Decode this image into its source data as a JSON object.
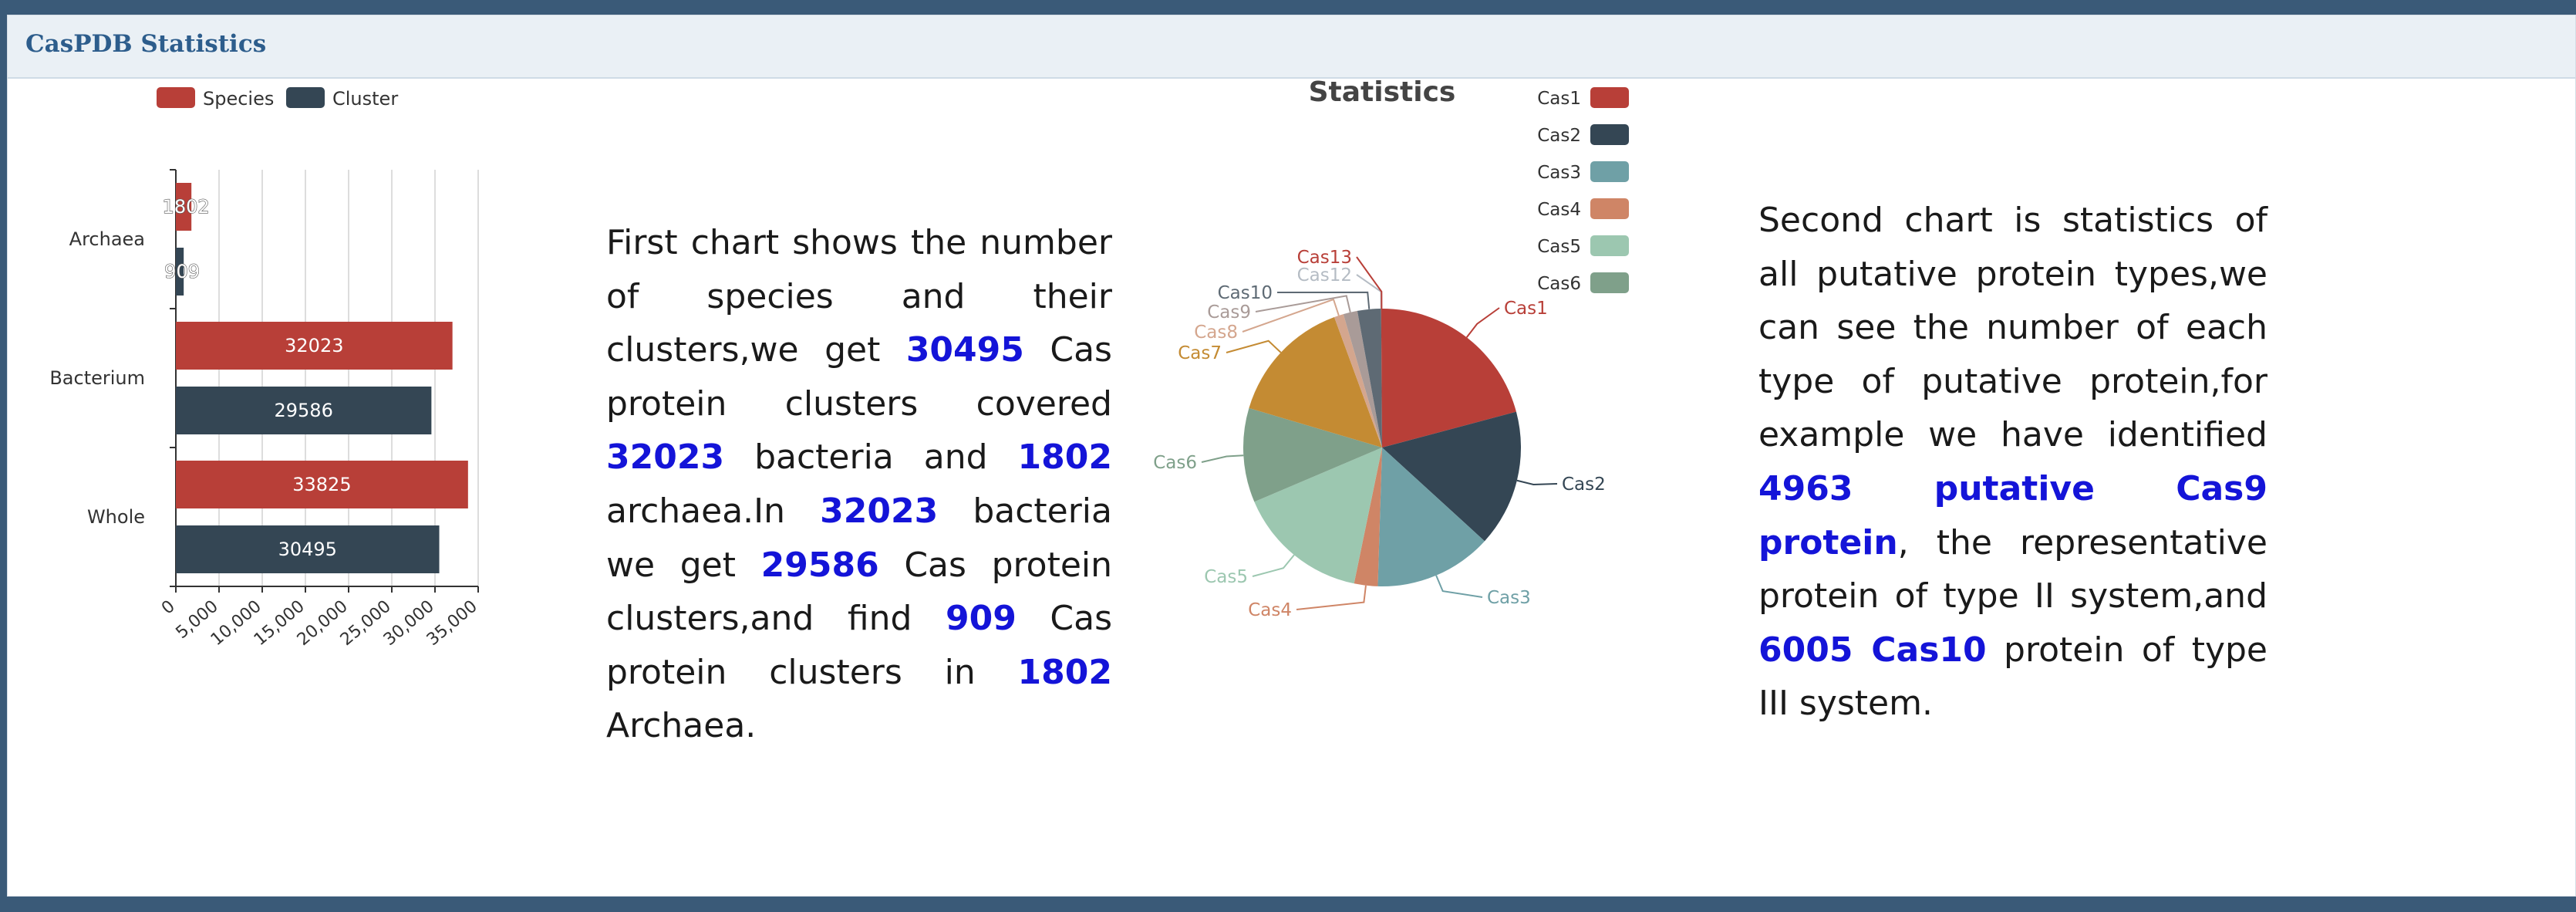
{
  "panel": {
    "title": "CasPDB Statistics"
  },
  "colors": {
    "Species": "#b83f38",
    "Cluster": "#344654",
    "Cas1": "#b83f38",
    "Cas2": "#344654",
    "Cas3": "#6fa0a6",
    "Cas4": "#cf8566",
    "Cas5": "#9cc7b0",
    "Cas6": "#7fa08a",
    "Cas7": "#c48b33",
    "Cas8": "#d4a68e",
    "Cas9": "#a99b98",
    "Cas10": "#5e6a74",
    "Cas12": "#c8cdd3",
    "Cas13": "#b83f38",
    "highlight": "#1414d8"
  },
  "chart_data": [
    {
      "type": "bar",
      "orientation": "horizontal",
      "categories": [
        "Archaea",
        "Bacterium",
        "Whole"
      ],
      "series": [
        {
          "name": "Species",
          "values": [
            1802,
            32023,
            33825
          ]
        },
        {
          "name": "Cluster",
          "values": [
            909,
            29586,
            30495
          ]
        }
      ],
      "xlim": [
        0,
        35000
      ],
      "xticks": [
        "0",
        "5,000",
        "10,000",
        "15,000",
        "20,000",
        "25,000",
        "30,000",
        "35,000"
      ],
      "grid": true,
      "legend": "top"
    },
    {
      "type": "pie",
      "title": "Statistics",
      "labels": [
        "Cas1",
        "Cas2",
        "Cas3",
        "Cas4",
        "Cas5",
        "Cas6",
        "Cas7",
        "Cas8",
        "Cas9",
        "Cas10",
        "Cas12",
        "Cas13"
      ],
      "values": [
        19,
        14.5,
        12.5,
        2.5,
        14,
        10,
        13.5,
        1,
        1.5,
        2.5,
        0,
        0.1
      ],
      "legend_labels": [
        "Cas1",
        "Cas2",
        "Cas3",
        "Cas4",
        "Cas5",
        "Cas6"
      ],
      "legend": "top-right"
    }
  ],
  "text1": {
    "segments": [
      {
        "t": "First chart shows the number of species and their clusters,we get "
      },
      {
        "t": "30495",
        "h": true
      },
      {
        "t": " Cas protein clusters covered "
      },
      {
        "t": "32023",
        "h": true
      },
      {
        "t": " bacteria and "
      },
      {
        "t": "1802",
        "h": true
      },
      {
        "t": " archaea.In "
      },
      {
        "t": "32023",
        "h": true
      },
      {
        "t": " bacteria we get "
      },
      {
        "t": "29586",
        "h": true
      },
      {
        "t": " Cas protein clusters,and find "
      },
      {
        "t": "909",
        "h": true
      },
      {
        "t": " Cas protein clusters in "
      },
      {
        "t": "1802",
        "h": true
      },
      {
        "t": " Archaea."
      }
    ]
  },
  "text2": {
    "segments": [
      {
        "t": "Second chart is statistics of all putative protein types,we can see the number of each type of putative protein,for example we have identified "
      },
      {
        "t": "4963 putative Cas9 protein",
        "h": true
      },
      {
        "t": ", the representative protein of type II system,and "
      },
      {
        "t": "6005 Cas10",
        "h": true
      },
      {
        "t": " protein of type III system."
      }
    ]
  }
}
